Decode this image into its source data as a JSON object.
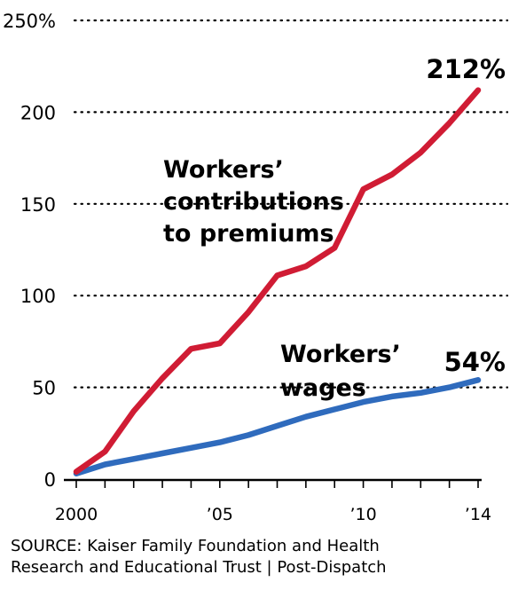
{
  "chart_data": {
    "type": "line",
    "x": [
      2000,
      2001,
      2002,
      2003,
      2004,
      2005,
      2006,
      2007,
      2008,
      2009,
      2010,
      2011,
      2012,
      2013,
      2014
    ],
    "x_tick_labels": [
      "2000",
      "’05",
      "’10",
      "’14"
    ],
    "x_tick_values": [
      2000,
      2005,
      2010,
      2014
    ],
    "y_tick_labels": [
      "0",
      "50",
      "100",
      "150",
      "200",
      "250%"
    ],
    "y_tick_values": [
      0,
      50,
      100,
      150,
      200,
      250
    ],
    "ylim": [
      0,
      250
    ],
    "xlim": [
      2000,
      2014
    ],
    "grid": "horizontal dotted",
    "series": [
      {
        "name_lines": [
          "Workers’",
          "contributions",
          "to premiums"
        ],
        "color": "#d01c34",
        "values": [
          4,
          15,
          37,
          55,
          71,
          74,
          91,
          111,
          116,
          126,
          158,
          166,
          178,
          194,
          212
        ],
        "end_label": "212%"
      },
      {
        "name_lines": [
          "Workers’",
          "wages"
        ],
        "color": "#2f6bbd",
        "values": [
          3,
          8,
          11,
          14,
          17,
          20,
          24,
          29,
          34,
          38,
          42,
          45,
          47,
          50,
          54
        ],
        "end_label": "54%"
      }
    ]
  },
  "source": {
    "line1": "SOURCE: Kaiser Family Foundation and Health",
    "line2": "Research and Educational Trust  |  Post-Dispatch"
  }
}
